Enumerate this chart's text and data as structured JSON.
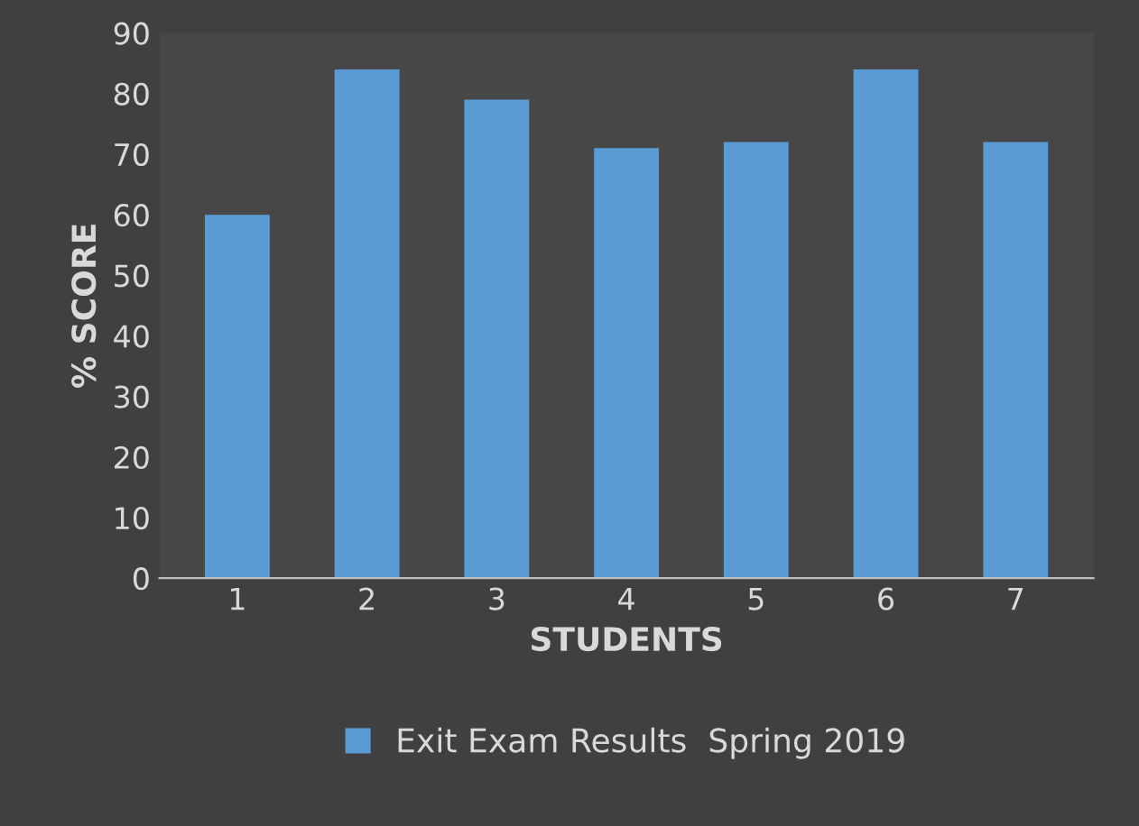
{
  "chart_data": {
    "type": "bar",
    "xlabel": "STUDENTS",
    "ylabel": "% SCORE",
    "categories": [
      "1",
      "2",
      "3",
      "4",
      "5",
      "6",
      "7"
    ],
    "series": [
      {
        "name": "Exit Exam Results  Spring 2019",
        "color": "#5b9bd5",
        "values": [
          60,
          84,
          79,
          71,
          72,
          84,
          72
        ]
      }
    ],
    "ylim": [
      0,
      90
    ],
    "yticks": [
      0,
      10,
      20,
      30,
      40,
      50,
      60,
      70,
      80,
      90
    ],
    "grid": false,
    "legend": "bottom"
  }
}
